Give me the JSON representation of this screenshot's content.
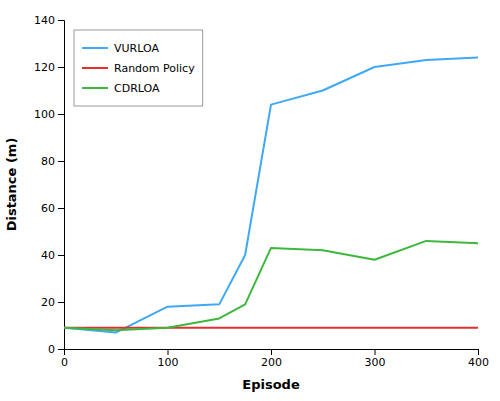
{
  "chart_data": {
    "type": "line",
    "xlabel": "Episode",
    "ylabel": "Distance (m)",
    "series": [
      {
        "name": "VURLOA",
        "color": "#3fa9f5",
        "x": [
          0,
          50,
          100,
          150,
          175,
          200,
          250,
          300,
          350,
          400
        ],
        "values": [
          9,
          7,
          18,
          19,
          40,
          104,
          110,
          120,
          123,
          124
        ]
      },
      {
        "name": "Random Policy",
        "color": "#e03030",
        "x": [
          0,
          400
        ],
        "values": [
          9,
          9
        ]
      },
      {
        "name": "CDRLOA",
        "color": "#3db83d",
        "x": [
          0,
          50,
          100,
          150,
          175,
          200,
          250,
          300,
          350,
          400
        ],
        "values": [
          9,
          8,
          9,
          13,
          19,
          43,
          42,
          38,
          46,
          45
        ]
      }
    ],
    "xlim": [
      0,
      400
    ],
    "ylim": [
      0,
      140
    ],
    "xticks": [
      0,
      100,
      200,
      300,
      400
    ],
    "yticks": [
      0,
      20,
      40,
      60,
      80,
      100,
      120,
      140
    ],
    "grid": false,
    "legend": "upper left"
  }
}
